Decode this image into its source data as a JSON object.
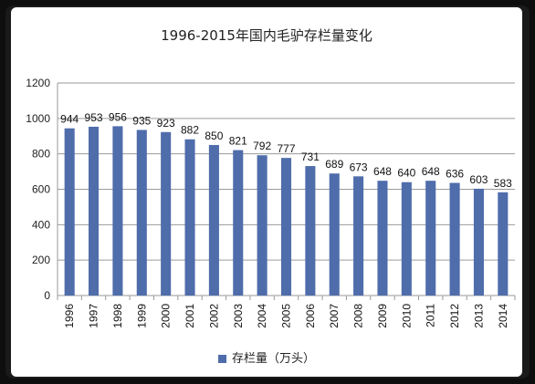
{
  "chart_data": {
    "type": "bar",
    "title": "1996-2015年国内毛驴存栏量变化",
    "categories": [
      "1996",
      "1997",
      "1998",
      "1999",
      "2000",
      "2001",
      "2002",
      "2003",
      "2004",
      "2005",
      "2006",
      "2007",
      "2008",
      "2009",
      "2010",
      "2011",
      "2012",
      "2013",
      "2014"
    ],
    "series": [
      {
        "name": "存栏量（万头）",
        "values": [
          944,
          953,
          956,
          935,
          923,
          882,
          850,
          821,
          792,
          777,
          731,
          689,
          673,
          648,
          640,
          648,
          636,
          603,
          583
        ],
        "color": "#4f6dab"
      }
    ],
    "ylim": [
      0,
      1200
    ],
    "yticks": [
      0,
      200,
      400,
      600,
      800,
      1000,
      1200
    ],
    "grid": true,
    "legend": "bottom",
    "xlabel": "",
    "ylabel": ""
  }
}
